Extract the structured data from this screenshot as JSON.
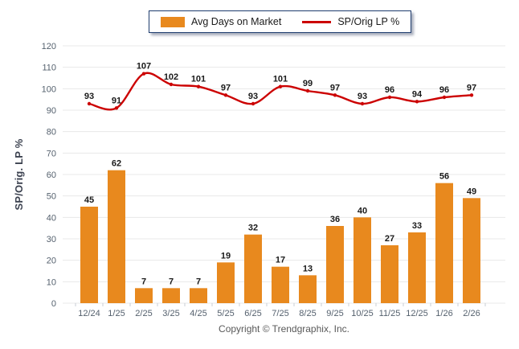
{
  "chart_data": {
    "type": "combo",
    "categories": [
      "12/24",
      "1/25",
      "2/25",
      "3/25",
      "4/25",
      "5/25",
      "6/25",
      "7/25",
      "8/25",
      "9/25",
      "10/25",
      "11/25",
      "12/25",
      "1/26",
      "2/26"
    ],
    "series": [
      {
        "name": "Avg Days on Market",
        "type": "bar",
        "color": "#E8891E",
        "values": [
          45,
          62,
          7,
          7,
          7,
          19,
          32,
          17,
          13,
          36,
          40,
          27,
          33,
          56,
          49
        ]
      },
      {
        "name": "SP/Orig LP %",
        "type": "line",
        "color": "#CC0000",
        "values": [
          93,
          91,
          107,
          102,
          101,
          97,
          93,
          101,
          99,
          97,
          93,
          96,
          94,
          96,
          97
        ]
      }
    ],
    "title": "",
    "xlabel": "",
    "ylabel": "SP/Orig. LP %",
    "ylim": [
      0,
      120
    ],
    "ytick_step": 10,
    "grid": true,
    "legend_position": "top-center",
    "data_labels": true
  },
  "legend": {
    "items": [
      {
        "label": "Avg Days on Market",
        "swatch": "bar-swatch"
      },
      {
        "label": "SP/Orig LP %",
        "swatch": "line-swatch"
      }
    ]
  },
  "footer": {
    "copyright": "Copyright © Trendgraphix, Inc."
  },
  "colors": {
    "bar": "#E8891E",
    "line": "#CC0000",
    "grid": "#E8E8E8",
    "axis_tick": "#C8CDD4",
    "axis_tick_label": "#55616E",
    "data_label": "#1A1A1A",
    "axis_title": "#3C4250",
    "legend_border": "#1E3C6E",
    "copyright_text": "#595959",
    "background": "#FFFFFF"
  }
}
